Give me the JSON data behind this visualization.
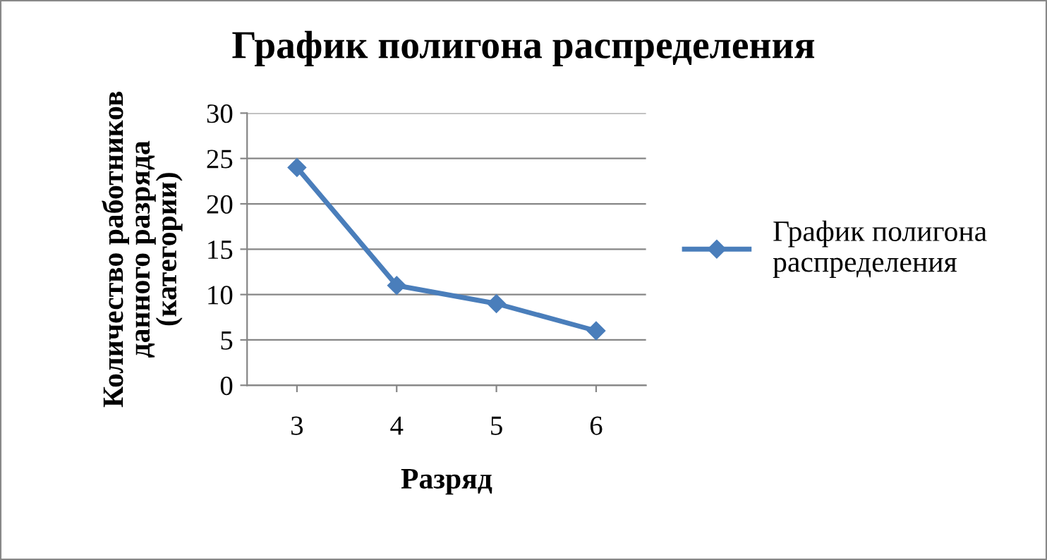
{
  "chart_data": {
    "type": "line",
    "title": "График полигона распределения",
    "xlabel": "Разряд",
    "ylabel": "Количество работников\nданного разряда\n(категории)",
    "categories": [
      "3",
      "4",
      "5",
      "6"
    ],
    "series": [
      {
        "name": "График полигона\nраспределения",
        "color": "#4a7ebb",
        "values": [
          24,
          11,
          9,
          6
        ]
      }
    ],
    "ylim": [
      0,
      30
    ],
    "yticks": [
      0,
      5,
      10,
      15,
      20,
      25,
      30
    ],
    "grid": "y",
    "legend": "right",
    "marker": "diamond",
    "line_style": "solid"
  }
}
